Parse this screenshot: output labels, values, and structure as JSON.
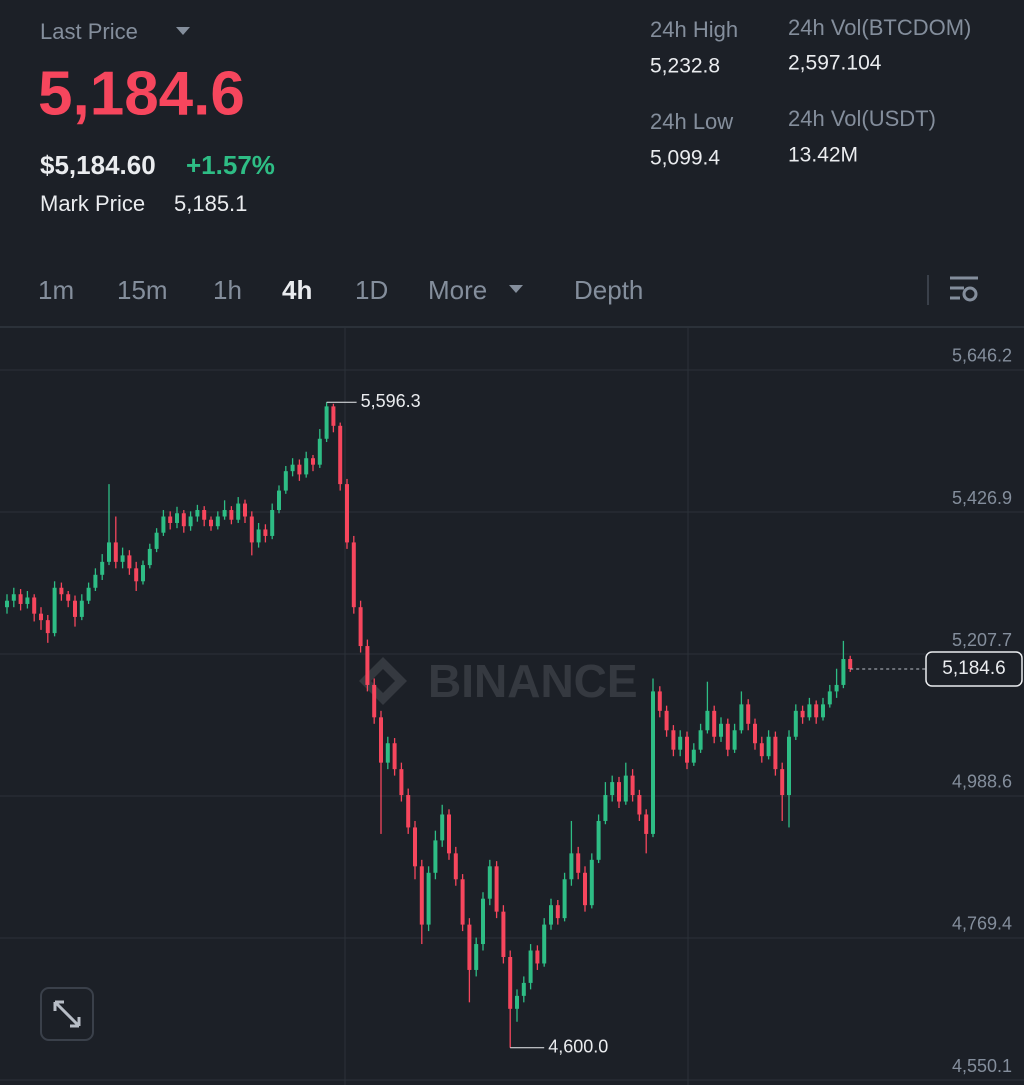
{
  "header": {
    "last_price_label": "Last Price",
    "last_price": "5,184.6",
    "usd_price": "$5,184.60",
    "change": "+1.57%",
    "mark_price_label": "Mark Price",
    "mark_price": "5,185.1",
    "stats": [
      {
        "label": "24h High",
        "value": "5,232.8"
      },
      {
        "label": "24h Low",
        "value": "5,099.4"
      },
      {
        "label": "24h Vol(BTCDOM)",
        "value": "2,597.104"
      },
      {
        "label": "24h Vol(USDT)",
        "value": "13.42M"
      }
    ]
  },
  "tabs": [
    "1m",
    "15m",
    "1h",
    "4h",
    "1D",
    "More",
    "Depth"
  ],
  "chart_data": {
    "type": "candlestick",
    "watermark": "BINANCE",
    "up_color": "#2ebd85",
    "down_color": "#f6465d",
    "ylim": [
      4542.4,
      5711.0
    ],
    "yticks": [
      {
        "value": 5646.2,
        "label": "5,646.2"
      },
      {
        "value": 5426.9,
        "label": "5,426.9"
      },
      {
        "value": 5207.7,
        "label": "5,207.7"
      },
      {
        "value": 4988.6,
        "label": "4,988.6"
      },
      {
        "value": 4769.4,
        "label": "4,769.4"
      },
      {
        "value": 4550.1,
        "label": "4,550.1"
      }
    ],
    "grid": true,
    "high_label": {
      "value": 5596.3,
      "label": "5,596.3"
    },
    "low_label": {
      "value": 4600.0,
      "label": "4,600.0"
    },
    "current_price": {
      "value": 5184.6,
      "label": "5,184.6"
    },
    "candles": [
      [
        5280,
        5300,
        5270,
        5290
      ],
      [
        5290,
        5310,
        5280,
        5300
      ],
      [
        5300,
        5308,
        5275,
        5285
      ],
      [
        5285,
        5305,
        5278,
        5295
      ],
      [
        5295,
        5300,
        5258,
        5270
      ],
      [
        5270,
        5280,
        5245,
        5260
      ],
      [
        5260,
        5268,
        5225,
        5240
      ],
      [
        5240,
        5320,
        5235,
        5310
      ],
      [
        5310,
        5318,
        5290,
        5300
      ],
      [
        5300,
        5305,
        5280,
        5290
      ],
      [
        5290,
        5298,
        5250,
        5265
      ],
      [
        5265,
        5300,
        5260,
        5290
      ],
      [
        5290,
        5318,
        5285,
        5310
      ],
      [
        5310,
        5340,
        5305,
        5330
      ],
      [
        5330,
        5362,
        5322,
        5350
      ],
      [
        5350,
        5470,
        5345,
        5380
      ],
      [
        5380,
        5420,
        5340,
        5350
      ],
      [
        5350,
        5372,
        5340,
        5360
      ],
      [
        5360,
        5368,
        5330,
        5340
      ],
      [
        5340,
        5350,
        5305,
        5320
      ],
      [
        5320,
        5352,
        5315,
        5345
      ],
      [
        5345,
        5378,
        5340,
        5370
      ],
      [
        5370,
        5402,
        5365,
        5395
      ],
      [
        5395,
        5430,
        5390,
        5420
      ],
      [
        5420,
        5428,
        5400,
        5410
      ],
      [
        5410,
        5435,
        5402,
        5425
      ],
      [
        5425,
        5430,
        5395,
        5405
      ],
      [
        5405,
        5428,
        5398,
        5420
      ],
      [
        5420,
        5438,
        5412,
        5430
      ],
      [
        5430,
        5436,
        5405,
        5415
      ],
      [
        5415,
        5420,
        5398,
        5405
      ],
      [
        5405,
        5428,
        5400,
        5420
      ],
      [
        5420,
        5445,
        5415,
        5430
      ],
      [
        5430,
        5436,
        5408,
        5415
      ],
      [
        5415,
        5450,
        5410,
        5440
      ],
      [
        5440,
        5446,
        5410,
        5420
      ],
      [
        5420,
        5428,
        5360,
        5380
      ],
      [
        5380,
        5410,
        5372,
        5400
      ],
      [
        5400,
        5408,
        5380,
        5390
      ],
      [
        5390,
        5440,
        5385,
        5430
      ],
      [
        5430,
        5468,
        5425,
        5460
      ],
      [
        5460,
        5498,
        5455,
        5490
      ],
      [
        5490,
        5510,
        5482,
        5500
      ],
      [
        5500,
        5508,
        5475,
        5485
      ],
      [
        5485,
        5520,
        5480,
        5510
      ],
      [
        5510,
        5515,
        5490,
        5500
      ],
      [
        5500,
        5555,
        5495,
        5540
      ],
      [
        5540,
        5596.3,
        5535,
        5590
      ],
      [
        5590,
        5594,
        5550,
        5560
      ],
      [
        5560,
        5565,
        5460,
        5470
      ],
      [
        5470,
        5478,
        5370,
        5380
      ],
      [
        5380,
        5390,
        5270,
        5280
      ],
      [
        5280,
        5290,
        5210,
        5220
      ],
      [
        5220,
        5230,
        5150,
        5160
      ],
      [
        5160,
        5170,
        5100,
        5110
      ],
      [
        5110,
        5120,
        4930,
        5040
      ],
      [
        5040,
        5080,
        5030,
        5070
      ],
      [
        5070,
        5078,
        5020,
        5030
      ],
      [
        5030,
        5040,
        4980,
        4990
      ],
      [
        4990,
        5000,
        4930,
        4940
      ],
      [
        4940,
        4950,
        4860,
        4880
      ],
      [
        4880,
        4890,
        4760,
        4790
      ],
      [
        4790,
        4880,
        4780,
        4870
      ],
      [
        4870,
        4935,
        4860,
        4920
      ],
      [
        4920,
        4975,
        4910,
        4960
      ],
      [
        4960,
        4968,
        4890,
        4900
      ],
      [
        4900,
        4910,
        4850,
        4860
      ],
      [
        4860,
        4868,
        4780,
        4790
      ],
      [
        4790,
        4800,
        4670,
        4720
      ],
      [
        4720,
        4770,
        4710,
        4760
      ],
      [
        4760,
        4840,
        4750,
        4830
      ],
      [
        4830,
        4890,
        4820,
        4880
      ],
      [
        4880,
        4888,
        4800,
        4810
      ],
      [
        4810,
        4820,
        4730,
        4740
      ],
      [
        4740,
        4750,
        4600.0,
        4660
      ],
      [
        4660,
        4690,
        4640,
        4680
      ],
      [
        4680,
        4710,
        4670,
        4700
      ],
      [
        4700,
        4760,
        4690,
        4750
      ],
      [
        4750,
        4758,
        4720,
        4730
      ],
      [
        4730,
        4800,
        4725,
        4790
      ],
      [
        4790,
        4830,
        4782,
        4820
      ],
      [
        4820,
        4828,
        4790,
        4800
      ],
      [
        4800,
        4870,
        4795,
        4860
      ],
      [
        4860,
        4950,
        4850,
        4900
      ],
      [
        4900,
        4910,
        4860,
        4870
      ],
      [
        4870,
        4880,
        4810,
        4820
      ],
      [
        4820,
        4900,
        4815,
        4890
      ],
      [
        4890,
        4960,
        4885,
        4950
      ],
      [
        4950,
        5010,
        4945,
        4990
      ],
      [
        4990,
        5020,
        4980,
        5010
      ],
      [
        5010,
        5018,
        4970,
        4980
      ],
      [
        4980,
        5040,
        4975,
        5020
      ],
      [
        5020,
        5030,
        4980,
        4990
      ],
      [
        4990,
        4998,
        4950,
        4960
      ],
      [
        4960,
        4968,
        4900,
        4930
      ],
      [
        4930,
        5170,
        4925,
        5150
      ],
      [
        5150,
        5158,
        5110,
        5120
      ],
      [
        5120,
        5128,
        5080,
        5090
      ],
      [
        5090,
        5098,
        5050,
        5060
      ],
      [
        5060,
        5090,
        5050,
        5080
      ],
      [
        5080,
        5088,
        5030,
        5040
      ],
      [
        5040,
        5070,
        5035,
        5060
      ],
      [
        5060,
        5100,
        5055,
        5090
      ],
      [
        5090,
        5165,
        5085,
        5120
      ],
      [
        5120,
        5128,
        5070,
        5080
      ],
      [
        5080,
        5110,
        5072,
        5100
      ],
      [
        5100,
        5108,
        5050,
        5060
      ],
      [
        5060,
        5100,
        5055,
        5090
      ],
      [
        5090,
        5150,
        5085,
        5130
      ],
      [
        5130,
        5138,
        5090,
        5100
      ],
      [
        5100,
        5108,
        5060,
        5070
      ],
      [
        5070,
        5080,
        5040,
        5050
      ],
      [
        5050,
        5090,
        5045,
        5080
      ],
      [
        5080,
        5088,
        5020,
        5030
      ],
      [
        5030,
        5040,
        4950,
        4990
      ],
      [
        4990,
        5090,
        4940,
        5080
      ],
      [
        5080,
        5130,
        5075,
        5120
      ],
      [
        5120,
        5128,
        5100,
        5110
      ],
      [
        5110,
        5140,
        5105,
        5130
      ],
      [
        5130,
        5136,
        5100,
        5110
      ],
      [
        5110,
        5140,
        5105,
        5130
      ],
      [
        5130,
        5160,
        5125,
        5150
      ],
      [
        5150,
        5185,
        5140,
        5160
      ],
      [
        5160,
        5228,
        5155,
        5200
      ],
      [
        5200,
        5205,
        5180,
        5184.6
      ]
    ]
  }
}
